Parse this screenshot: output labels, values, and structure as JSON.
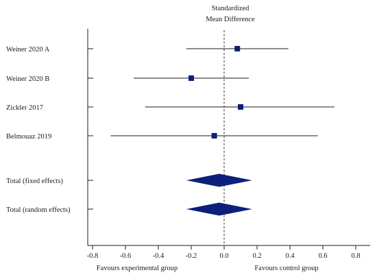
{
  "chart_data": {
    "type": "forest",
    "title_lines": [
      "Standardized",
      "Mean Difference"
    ],
    "xlim": [
      -0.8,
      0.8
    ],
    "xticks": [
      -0.8,
      -0.6,
      -0.4,
      -0.2,
      0.0,
      0.2,
      0.4,
      0.6,
      0.8
    ],
    "xtick_labels": [
      "-0.8",
      "-0.6",
      "-0.4",
      "-0.2",
      "0.0",
      "0.2",
      "0.4",
      "0.6",
      "0.8"
    ],
    "reference_line": 0,
    "x_left_caption": "Favours experimental group",
    "x_right_caption": "Favours control group",
    "studies": [
      {
        "label": "Weiner 2020 A",
        "smd": 0.08,
        "ci": [
          -0.23,
          0.39
        ]
      },
      {
        "label": "Weiner 2020 B",
        "smd": -0.2,
        "ci": [
          -0.55,
          0.15
        ]
      },
      {
        "label": "Zickler 2017",
        "smd": 0.1,
        "ci": [
          -0.48,
          0.67
        ]
      },
      {
        "label": "Belmouaz 2019",
        "smd": -0.06,
        "ci": [
          -0.69,
          0.57
        ]
      }
    ],
    "totals": [
      {
        "label": "Total (fixed effects)",
        "smd": -0.03,
        "ci": [
          -0.23,
          0.17
        ]
      },
      {
        "label": "Total (random effects)",
        "smd": -0.03,
        "ci": [
          -0.23,
          0.17
        ]
      }
    ],
    "marker_color": "#0c1f7a",
    "line_color": "#1a1a1a",
    "reference_line_style": "dashed"
  }
}
